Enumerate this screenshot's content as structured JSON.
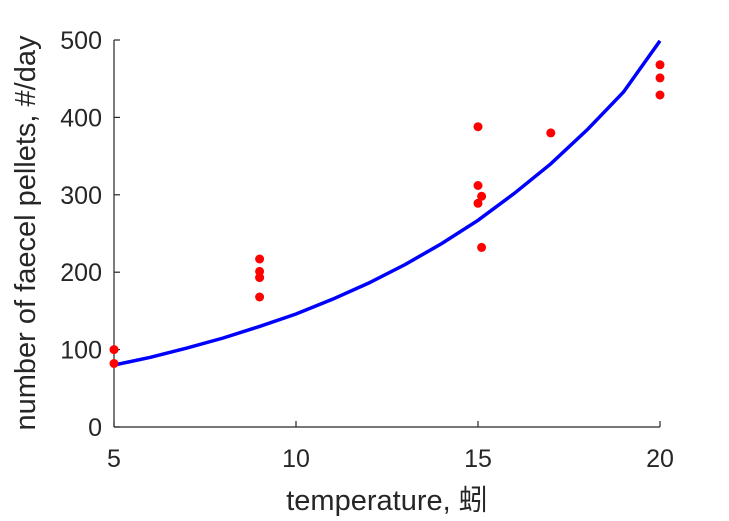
{
  "chart_data": {
    "type": "scatter",
    "title": "",
    "xlabel": "temperature, 蚓",
    "ylabel": "number of faecel pellets, #/day",
    "xlim": [
      5,
      20
    ],
    "ylim": [
      0,
      500
    ],
    "xticks": [
      "5",
      "10",
      "15",
      "20"
    ],
    "yticks": [
      "0",
      "100",
      "200",
      "300",
      "400",
      "500"
    ],
    "grid": false,
    "legend": "none",
    "colors": {
      "points": "#ff0000",
      "fit": "#0000ff",
      "axis": "#262626"
    },
    "series": [
      {
        "kind": "points",
        "x": [
          5,
          5,
          9,
          9,
          9,
          9,
          15,
          15,
          15,
          15.1,
          15.1,
          17,
          20,
          20,
          20
        ],
        "y": [
          100,
          82,
          217,
          201,
          193,
          168,
          388,
          312,
          289,
          298,
          232,
          380,
          468,
          451,
          429
        ]
      },
      {
        "kind": "fit-curve",
        "x": [
          5,
          6,
          7,
          8,
          9,
          10,
          11,
          12,
          13,
          14,
          15,
          16,
          17,
          18,
          19,
          20
        ],
        "y": [
          80,
          90,
          102,
          115,
          130,
          146,
          165,
          186,
          210,
          237,
          267,
          302,
          340,
          384,
          433,
          499
        ]
      }
    ]
  }
}
